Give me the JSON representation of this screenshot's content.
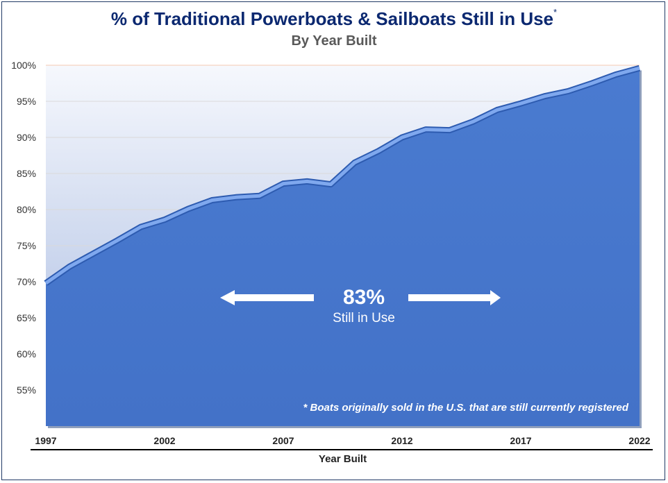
{
  "chart_data": {
    "type": "area",
    "title": "% of Traditional Powerboats & Sailboats Still in Use",
    "title_marker": "*",
    "subtitle": "By Year Built",
    "xlabel": "Year Built",
    "ylabel": "",
    "x": [
      1997,
      1998,
      1999,
      2000,
      2001,
      2002,
      2003,
      2004,
      2005,
      2006,
      2007,
      2008,
      2009,
      2010,
      2011,
      2012,
      2013,
      2014,
      2015,
      2016,
      2017,
      2018,
      2019,
      2020,
      2021,
      2022
    ],
    "series": [
      {
        "values": [
          69.8,
          72.1,
          73.9,
          75.7,
          77.6,
          78.6,
          80.1,
          81.3,
          81.7,
          81.9,
          83.6,
          83.9,
          83.5,
          86.5,
          88.1,
          90.0,
          91.1,
          91.0,
          92.2,
          93.8,
          94.7,
          95.7,
          96.4,
          97.5,
          98.7,
          99.6
        ]
      }
    ],
    "x_ticks": [
      "1997",
      "2002",
      "2007",
      "2012",
      "2017",
      "2022"
    ],
    "y_ticks": [
      "55%",
      "60%",
      "65%",
      "70%",
      "75%",
      "80%",
      "85%",
      "90%",
      "95%",
      "100%"
    ],
    "ylim": [
      50,
      100
    ],
    "xlim": [
      1997,
      2022
    ],
    "grid": true,
    "fill_color": "#4a7bd0",
    "line_color": "#7fa8ee",
    "title_color": "#0b2870",
    "annotation": {
      "value": "83%",
      "text": "Still in Use"
    },
    "footnote": "* Boats originally sold in the U.S. that are still currently registered"
  }
}
